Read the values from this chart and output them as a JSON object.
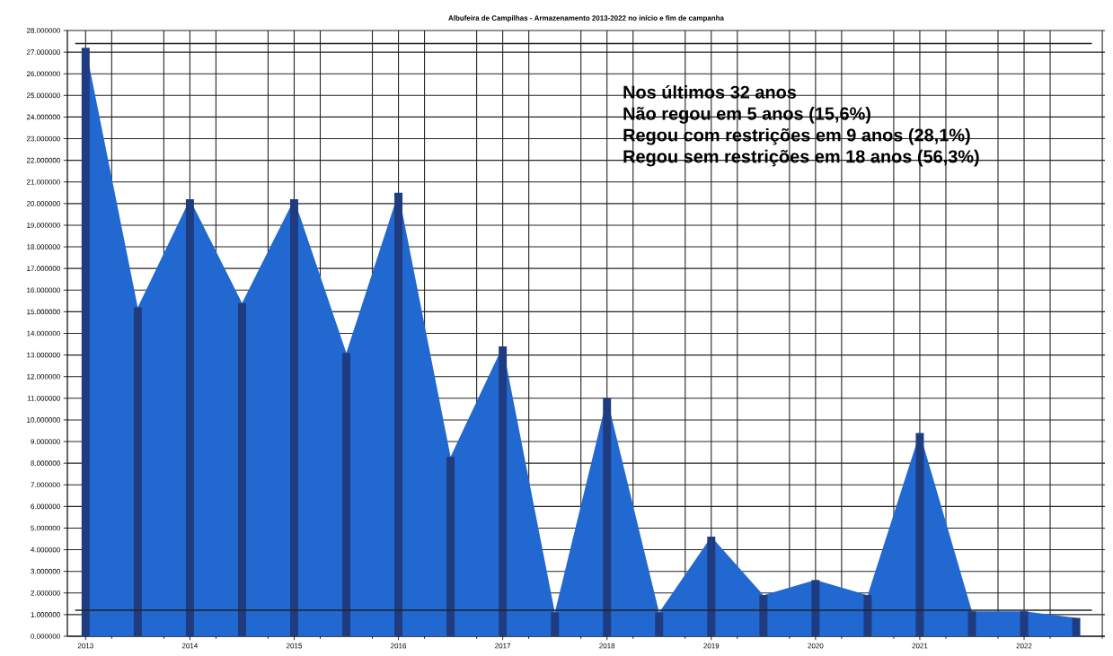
{
  "chart_data": {
    "type": "area",
    "title": "Albufeira de Campilhas - Armazenamento 2013-2022 no início e fim de campanha",
    "categories": [
      "2013",
      null,
      "2014",
      null,
      "2015",
      null,
      "2016",
      null,
      "2017",
      null,
      "2018",
      null,
      "2019",
      null,
      "2020",
      null,
      "2021",
      null,
      "2022",
      null
    ],
    "series": [
      {
        "color": "#2168d0",
        "values": [
          27.2,
          15.2,
          20.2,
          15.4,
          20.2,
          13.1,
          20.5,
          8.3,
          13.4,
          1.1,
          11.0,
          1.1,
          4.6,
          1.9,
          2.6,
          1.9,
          9.4,
          1.15,
          1.15,
          0.85
        ]
      },
      {
        "type": "bar",
        "color": "#203c80",
        "values": [
          27.2,
          15.2,
          20.2,
          15.4,
          20.2,
          13.1,
          20.5,
          8.3,
          13.4,
          1.1,
          11.0,
          1.1,
          4.6,
          1.9,
          2.6,
          1.9,
          9.4,
          1.15,
          1.15,
          0.85
        ]
      }
    ],
    "ylim": [
      0,
      28
    ],
    "yticks": [
      {
        "value": 0,
        "label": "0.000000"
      },
      {
        "value": 1,
        "label": "1.000000"
      },
      {
        "value": 2,
        "label": "2.000000"
      },
      {
        "value": 3,
        "label": "3.000000"
      },
      {
        "value": 4,
        "label": "4.000000"
      },
      {
        "value": 5,
        "label": "5.000000"
      },
      {
        "value": 6,
        "label": "6.000000"
      },
      {
        "value": 7,
        "label": "7.000000"
      },
      {
        "value": 8,
        "label": "8.000000"
      },
      {
        "value": 9,
        "label": "9.000000"
      },
      {
        "value": 10,
        "label": "10.000000"
      },
      {
        "value": 11,
        "label": "11.000000"
      },
      {
        "value": 12,
        "label": "12.000000"
      },
      {
        "value": 13,
        "label": "13.000000"
      },
      {
        "value": 14,
        "label": "14.000000"
      },
      {
        "value": 15,
        "label": "15.000000"
      },
      {
        "value": 16,
        "label": "16.000000"
      },
      {
        "value": 17,
        "label": "17.000000"
      },
      {
        "value": 18,
        "label": "18.000000"
      },
      {
        "value": 19,
        "label": "19.000000"
      },
      {
        "value": 20,
        "label": "20.000000"
      },
      {
        "value": 21,
        "label": "21.000000"
      },
      {
        "value": 22,
        "label": "22.000000"
      },
      {
        "value": 23,
        "label": "23.000000"
      },
      {
        "value": 24,
        "label": "24.000000"
      },
      {
        "value": 25,
        "label": "25.000000"
      },
      {
        "value": 26,
        "label": "26.000000"
      },
      {
        "value": 27,
        "label": "27.000000"
      },
      {
        "value": 28,
        "label": "28.000000"
      }
    ],
    "grid": true,
    "ref_lines": [
      {
        "axis": "y",
        "value": 27.4,
        "color": "#222222"
      },
      {
        "axis": "y",
        "value": 1.2,
        "color": "#222222"
      }
    ],
    "annotations": [
      "Nos últimos 32 anos",
      "Não regou em 5 anos (15,6%)",
      "Regou com restrições em 9 anos (28,1%)",
      "Regou sem restrições em 18 anos (56,3%)"
    ]
  }
}
